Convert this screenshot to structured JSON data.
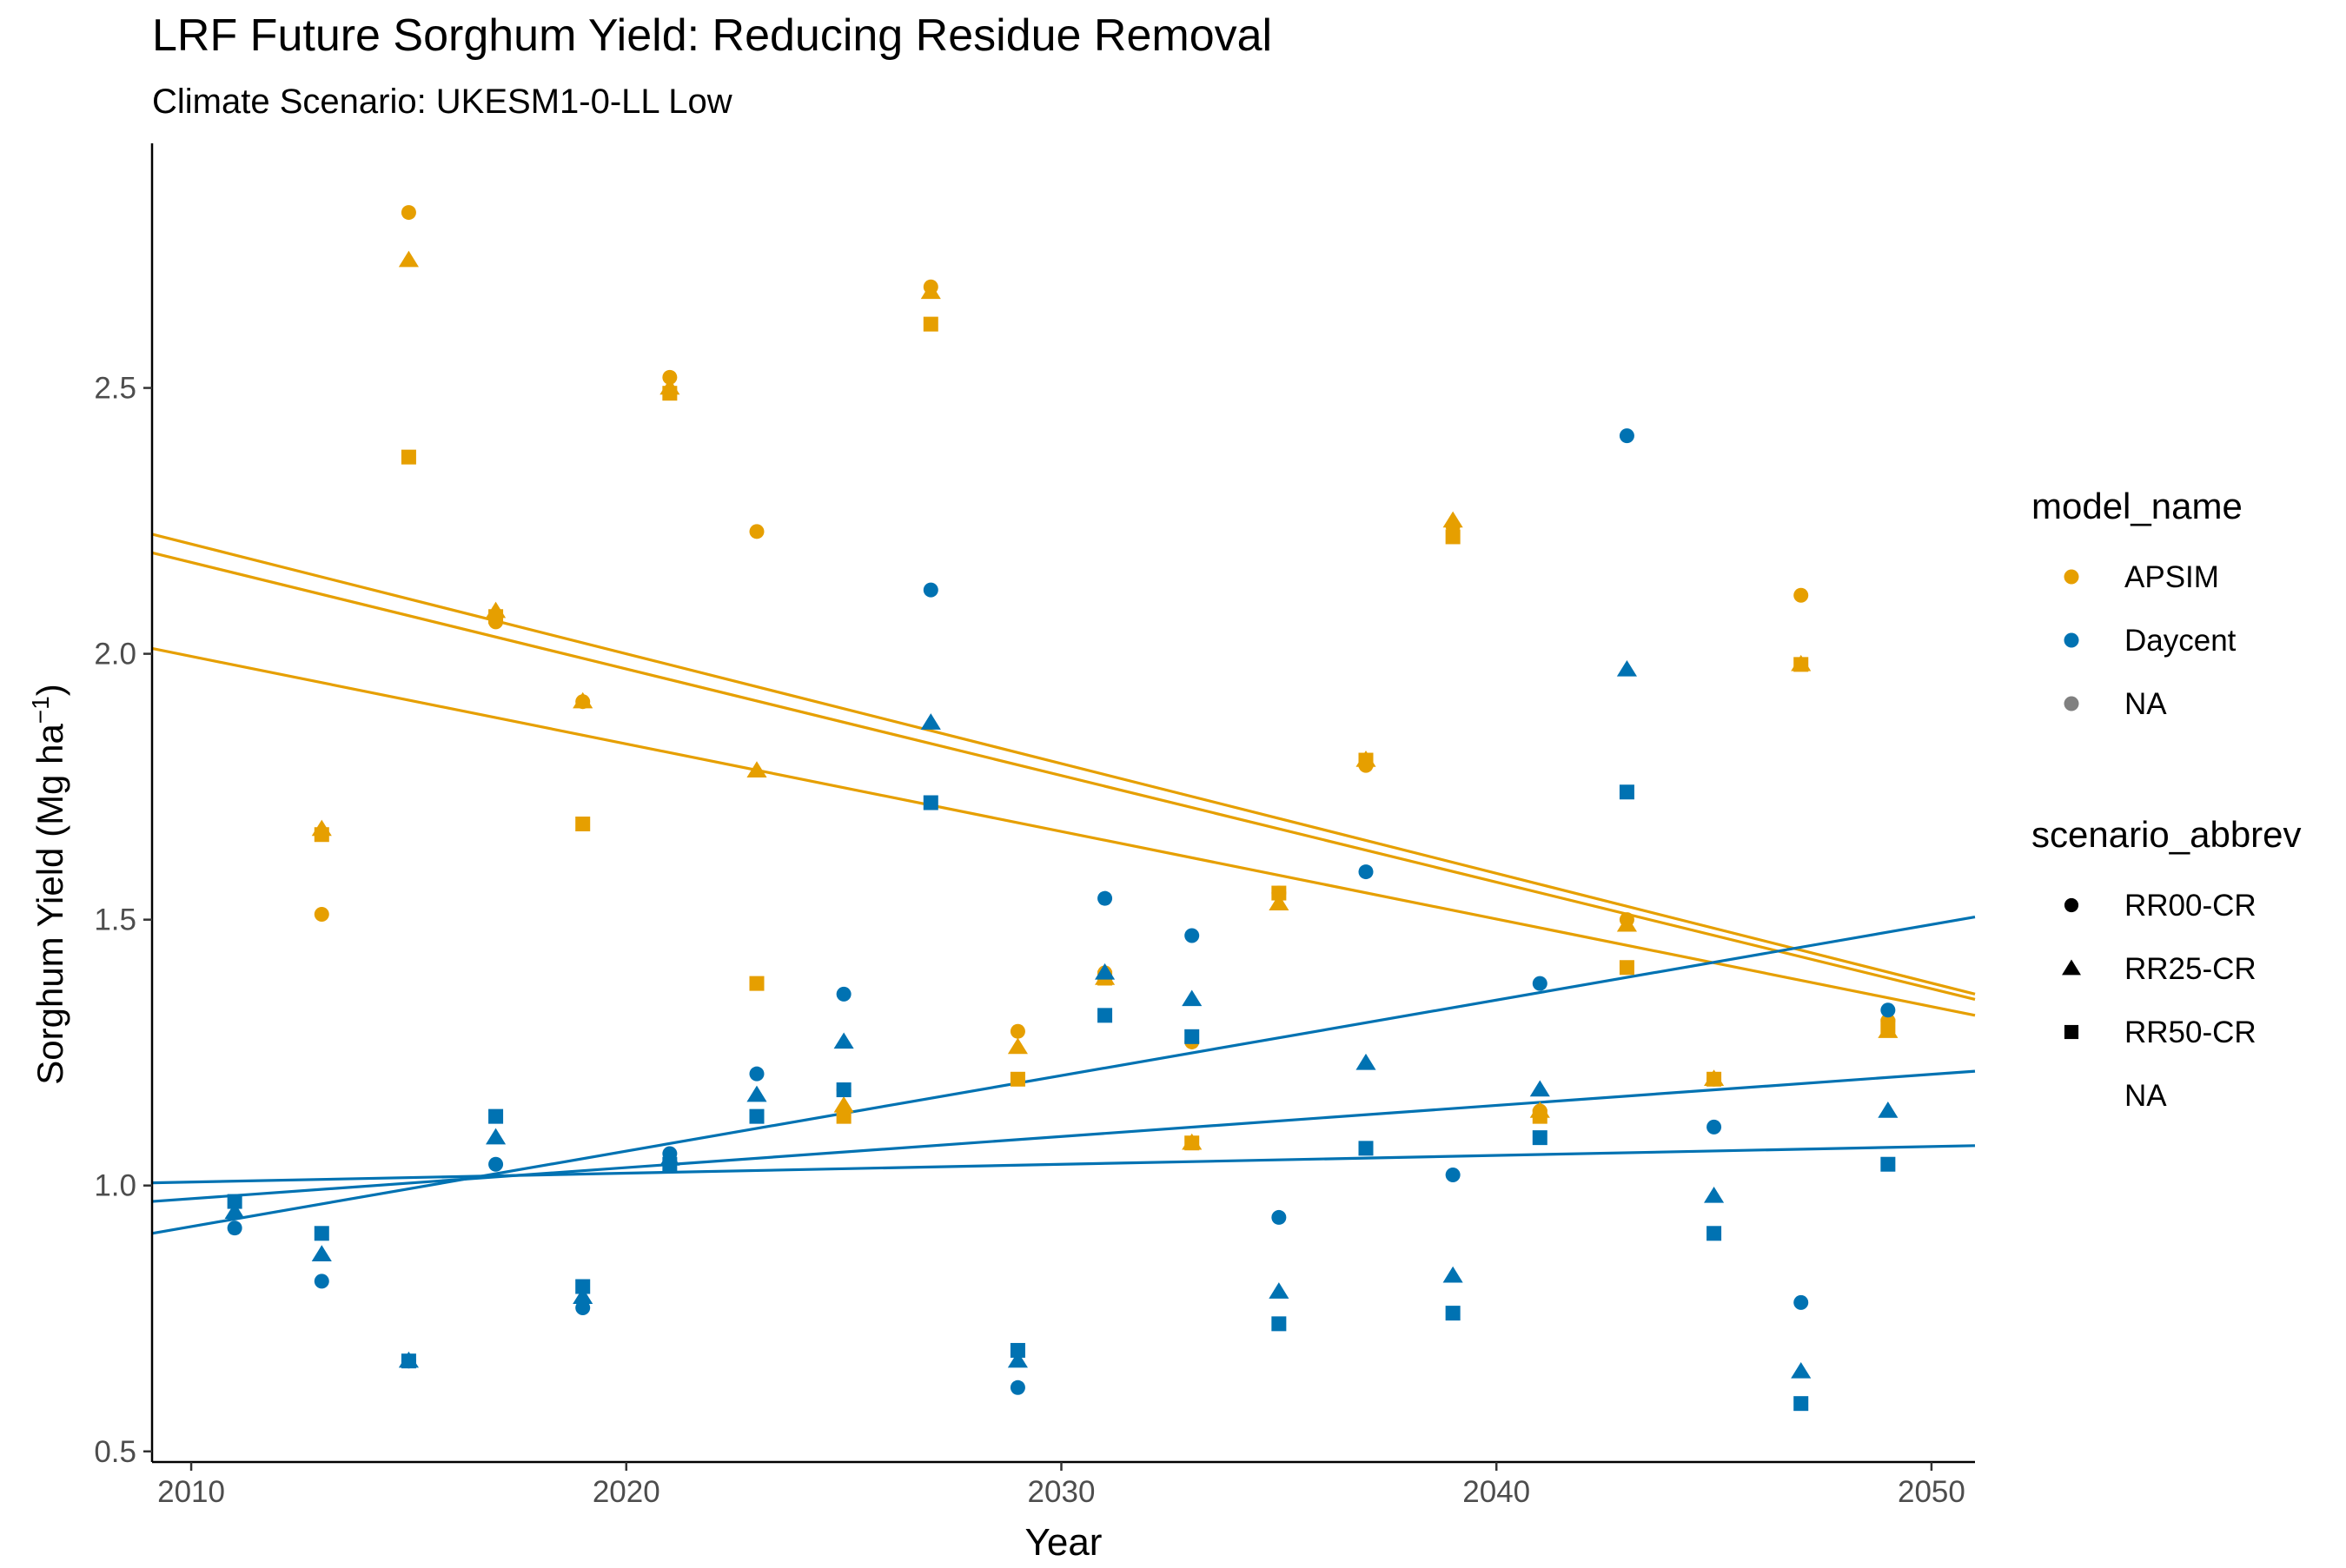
{
  "chart_data": {
    "type": "scatter",
    "title": "LRF Future Sorghum Yield: Reducing Residue Removal",
    "subtitle": "Climate Scenario: UKESM1-0-LL Low",
    "xlabel": "Year",
    "ylabel_main": "Sorghum Yield (Mg ha",
    "ylabel_sup": "−1",
    "ylabel_end": ")",
    "xlim": [
      2009.1,
      2051
    ],
    "ylim": [
      0.48,
      2.96
    ],
    "x_ticks": [
      2010,
      2020,
      2030,
      2040,
      2050
    ],
    "y_ticks": [
      0.5,
      1.0,
      1.5,
      2.0,
      2.5
    ],
    "y_tick_labels": [
      "0.5",
      "1.0",
      "1.5",
      "2.0",
      "2.5"
    ],
    "grid": false,
    "legend_position": "right",
    "colors": {
      "APSIM": "#E69F00",
      "Daycent": "#0072B2",
      "NA": "#808080",
      "black": "#000000"
    },
    "legend": {
      "model_title": "model_name",
      "model_items": [
        {
          "label": "APSIM",
          "color": "#E69F00"
        },
        {
          "label": "Daycent",
          "color": "#0072B2"
        },
        {
          "label": "NA",
          "color": "#808080"
        }
      ],
      "scenario_title": "scenario_abbrev",
      "scenario_items": [
        {
          "label": "RR00-CR",
          "shape": "circle"
        },
        {
          "label": "RR25-CR",
          "shape": "triangle"
        },
        {
          "label": "RR50-CR",
          "shape": "square"
        },
        {
          "label": "NA",
          "shape": "none"
        }
      ]
    },
    "series": [
      {
        "model": "APSIM",
        "scenario": "RR00-CR",
        "shape": "circle",
        "color": "#E69F00",
        "points": [
          [
            2013,
            1.51
          ],
          [
            2015,
            2.83
          ],
          [
            2017,
            2.06
          ],
          [
            2019,
            1.91
          ],
          [
            2021,
            2.52
          ],
          [
            2023,
            2.23
          ],
          [
            2025,
            1.18
          ],
          [
            2027,
            2.69
          ],
          [
            2029,
            1.29
          ],
          [
            2031,
            1.4
          ],
          [
            2033,
            1.27
          ],
          [
            2035,
            1.55
          ],
          [
            2037,
            1.79
          ],
          [
            2039,
            2.24
          ],
          [
            2041,
            1.14
          ],
          [
            2043,
            1.5
          ],
          [
            2045,
            1.2
          ],
          [
            2047,
            2.11
          ],
          [
            2049,
            1.31
          ]
        ]
      },
      {
        "model": "APSIM",
        "scenario": "RR25-CR",
        "shape": "triangle",
        "color": "#E69F00",
        "points": [
          [
            2013,
            1.67
          ],
          [
            2015,
            2.74
          ],
          [
            2017,
            2.08
          ],
          [
            2019,
            1.91
          ],
          [
            2021,
            2.5
          ],
          [
            2023,
            1.78
          ],
          [
            2025,
            1.15
          ],
          [
            2027,
            2.68
          ],
          [
            2029,
            1.26
          ],
          [
            2031,
            1.39
          ],
          [
            2033,
            1.08
          ],
          [
            2035,
            1.53
          ],
          [
            2037,
            1.8
          ],
          [
            2039,
            2.25
          ],
          [
            2041,
            1.14
          ],
          [
            2043,
            1.49
          ],
          [
            2045,
            1.2
          ],
          [
            2047,
            1.98
          ],
          [
            2049,
            1.29
          ]
        ]
      },
      {
        "model": "APSIM",
        "scenario": "RR50-CR",
        "shape": "square",
        "color": "#E69F00",
        "points": [
          [
            2013,
            1.66
          ],
          [
            2015,
            2.37
          ],
          [
            2017,
            2.07
          ],
          [
            2019,
            1.68
          ],
          [
            2021,
            2.49
          ],
          [
            2023,
            1.38
          ],
          [
            2025,
            1.13
          ],
          [
            2027,
            2.62
          ],
          [
            2029,
            1.2
          ],
          [
            2031,
            1.39
          ],
          [
            2033,
            1.08
          ],
          [
            2035,
            1.55
          ],
          [
            2037,
            1.8
          ],
          [
            2039,
            2.22
          ],
          [
            2041,
            1.13
          ],
          [
            2043,
            1.41
          ],
          [
            2045,
            1.2
          ],
          [
            2047,
            1.98
          ],
          [
            2049,
            1.3
          ]
        ]
      },
      {
        "model": "Daycent",
        "scenario": "RR00-CR",
        "shape": "circle",
        "color": "#0072B2",
        "points": [
          [
            2011,
            0.92
          ],
          [
            2013,
            0.82
          ],
          [
            2015,
            0.67
          ],
          [
            2017,
            1.04
          ],
          [
            2019,
            0.77
          ],
          [
            2021,
            1.06
          ],
          [
            2023,
            1.21
          ],
          [
            2025,
            1.36
          ],
          [
            2027,
            2.12
          ],
          [
            2029,
            0.62
          ],
          [
            2031,
            1.54
          ],
          [
            2033,
            1.47
          ],
          [
            2035,
            0.94
          ],
          [
            2037,
            1.59
          ],
          [
            2039,
            1.02
          ],
          [
            2041,
            1.38
          ],
          [
            2043,
            2.41
          ],
          [
            2045,
            1.11
          ],
          [
            2047,
            0.78
          ],
          [
            2049,
            1.33
          ]
        ]
      },
      {
        "model": "Daycent",
        "scenario": "RR25-CR",
        "shape": "triangle",
        "color": "#0072B2",
        "points": [
          [
            2011,
            0.95
          ],
          [
            2013,
            0.87
          ],
          [
            2015,
            0.67
          ],
          [
            2017,
            1.09
          ],
          [
            2019,
            0.79
          ],
          [
            2021,
            1.05
          ],
          [
            2023,
            1.17
          ],
          [
            2025,
            1.27
          ],
          [
            2027,
            1.87
          ],
          [
            2029,
            0.67
          ],
          [
            2031,
            1.4
          ],
          [
            2033,
            1.35
          ],
          [
            2035,
            0.8
          ],
          [
            2037,
            1.23
          ],
          [
            2039,
            0.83
          ],
          [
            2041,
            1.18
          ],
          [
            2043,
            1.97
          ],
          [
            2045,
            0.98
          ],
          [
            2047,
            0.65
          ],
          [
            2049,
            1.14
          ]
        ]
      },
      {
        "model": "Daycent",
        "scenario": "RR50-CR",
        "shape": "square",
        "color": "#0072B2",
        "points": [
          [
            2011,
            0.97
          ],
          [
            2013,
            0.91
          ],
          [
            2015,
            0.67
          ],
          [
            2017,
            1.13
          ],
          [
            2019,
            0.81
          ],
          [
            2021,
            1.04
          ],
          [
            2023,
            1.13
          ],
          [
            2025,
            1.18
          ],
          [
            2027,
            1.72
          ],
          [
            2029,
            0.69
          ],
          [
            2031,
            1.32
          ],
          [
            2033,
            1.28
          ],
          [
            2035,
            0.74
          ],
          [
            2037,
            1.07
          ],
          [
            2039,
            0.76
          ],
          [
            2041,
            1.09
          ],
          [
            2043,
            1.74
          ],
          [
            2045,
            0.91
          ],
          [
            2047,
            0.59
          ],
          [
            2049,
            1.04
          ]
        ]
      }
    ],
    "trend_lines": [
      {
        "color": "#E69F00",
        "from": [
          2009.1,
          2.225
        ],
        "to": [
          2051,
          1.36
        ]
      },
      {
        "color": "#E69F00",
        "from": [
          2009.1,
          2.19
        ],
        "to": [
          2051,
          1.35
        ]
      },
      {
        "color": "#E69F00",
        "from": [
          2009.1,
          2.01
        ],
        "to": [
          2051,
          1.32
        ]
      },
      {
        "color": "#0072B2",
        "from": [
          2009.1,
          0.91
        ],
        "to": [
          2051,
          1.505
        ]
      },
      {
        "color": "#0072B2",
        "from": [
          2009.1,
          0.97
        ],
        "to": [
          2051,
          1.215
        ]
      },
      {
        "color": "#0072B2",
        "from": [
          2009.1,
          1.005
        ],
        "to": [
          2051,
          1.075
        ]
      }
    ]
  }
}
